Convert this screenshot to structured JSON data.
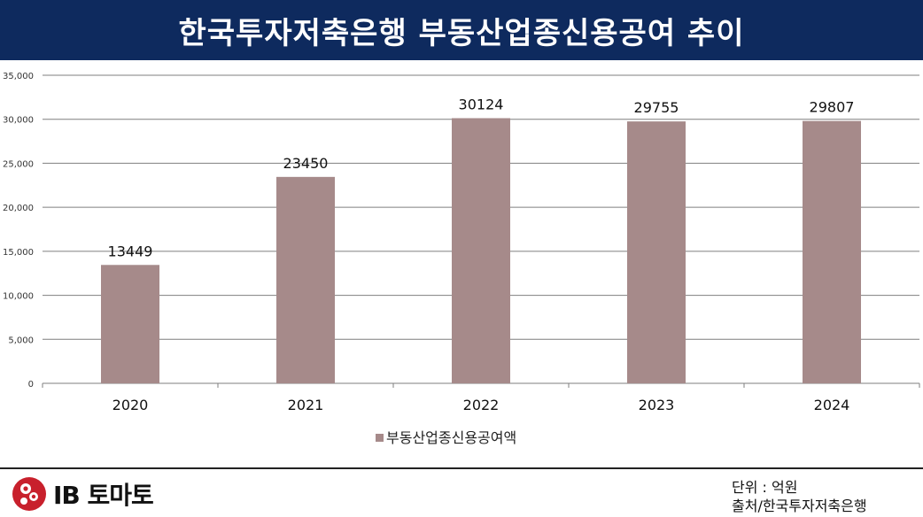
{
  "header": {
    "title": "한국투자저축은행 부동산업종신용공여 추이"
  },
  "chart_data": {
    "type": "bar",
    "categories": [
      "2020",
      "2021",
      "2022",
      "2023",
      "2024"
    ],
    "series": [
      {
        "name": "부동산업종신용공여액",
        "values": [
          13449,
          23450,
          30124,
          29755,
          29807
        ]
      }
    ],
    "data_labels": [
      "13449",
      "23450",
      "30124",
      "29755",
      "29807"
    ],
    "yticks": [
      0,
      5000,
      10000,
      15000,
      20000,
      25000,
      30000,
      35000
    ],
    "ytick_labels": [
      "0",
      "5,000",
      "10,000",
      "15,000",
      "20,000",
      "25,000",
      "30,000",
      "35,000"
    ],
    "ylim": [
      0,
      35000
    ],
    "grid": true,
    "legend_position": "bottom",
    "colors": {
      "bar": "#a68a8a",
      "grid": "#7f7f7f",
      "axis": "#7f7f7f"
    }
  },
  "footer": {
    "logo_text": "IB 토마토",
    "unit_note": "단위 : 억원",
    "source_note": "출처/한국투자저축은행"
  }
}
